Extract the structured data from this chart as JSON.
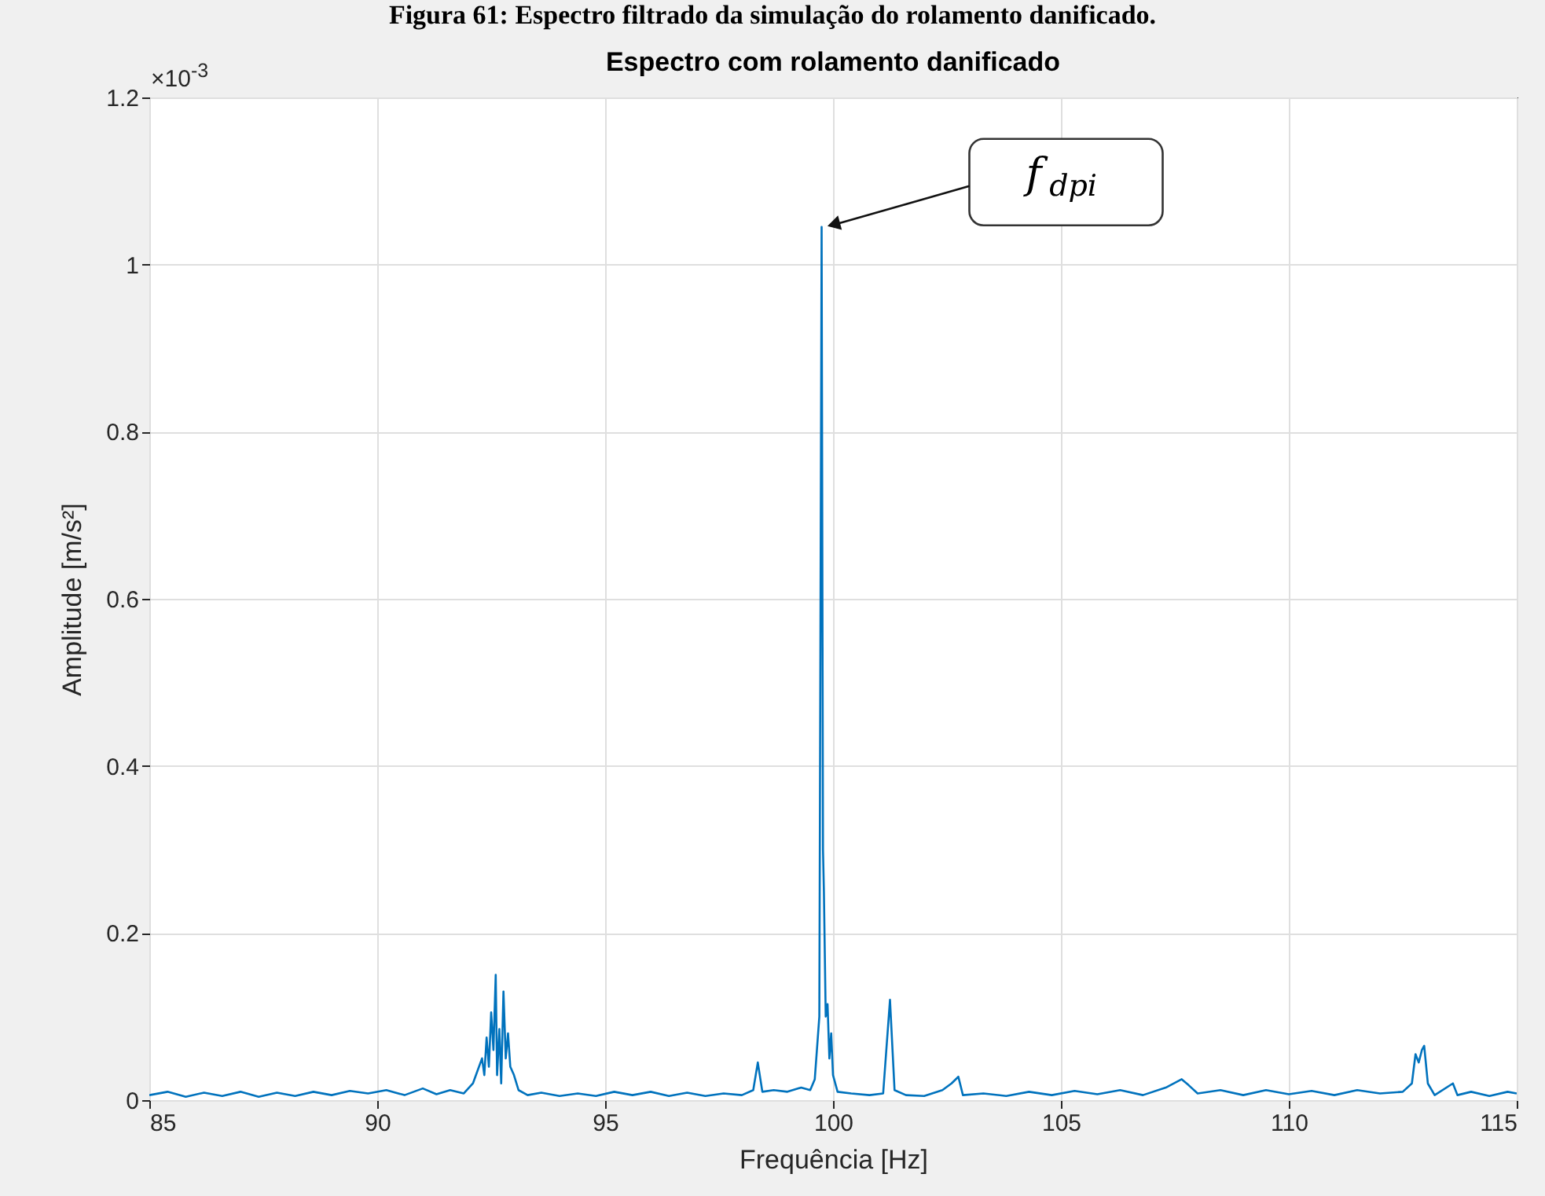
{
  "chart_data": {
    "type": "line",
    "title": "Espectro com rolamento danificado",
    "xlabel": "Frequência [Hz]",
    "ylabel": "Amplitude [m/s²]",
    "annotations": [
      "×10$^{-3}$",
      "Figura 61: Espectro filtrado da simulação do rolamento danificado.",
      "f$_{dpi}$"
    ],
    "xlim": [
      85,
      115
    ],
    "xticks": [
      85,
      90,
      95,
      100,
      105,
      110,
      115
    ],
    "ylim": [
      0,
      1.2
    ],
    "yticks": [
      0,
      0.2,
      0.4,
      0.6,
      0.8,
      1,
      1.2
    ],
    "grid": true,
    "marker": "none",
    "line_style": "solid",
    "series": [
      {
        "color": "#0072bd",
        "x": [
          85,
          85.4,
          85.8,
          86.2,
          86.6,
          87,
          87.4,
          87.8,
          88.2,
          88.6,
          89,
          89.4,
          89.8,
          90.2,
          90.6,
          91,
          91.3,
          91.6,
          91.9,
          92.1,
          92.2,
          92.3,
          92.35,
          92.4,
          92.45,
          92.5,
          92.55,
          92.6,
          92.63,
          92.68,
          92.72,
          92.77,
          92.82,
          92.87,
          92.92,
          93,
          93.1,
          93.3,
          93.6,
          94,
          94.4,
          94.8,
          95.2,
          95.6,
          96,
          96.4,
          96.8,
          97.2,
          97.6,
          98,
          98.25,
          98.35,
          98.45,
          98.7,
          99,
          99.3,
          99.5,
          99.6,
          99.7,
          99.75,
          99.78,
          99.8,
          99.84,
          99.88,
          99.92,
          99.96,
          100,
          100.1,
          100.4,
          100.8,
          101.1,
          101.25,
          101.35,
          101.6,
          102,
          102.4,
          102.6,
          102.75,
          102.85,
          103.3,
          103.8,
          104.3,
          104.8,
          105.3,
          105.8,
          106.3,
          106.8,
          107.3,
          107.65,
          107.8,
          108,
          108.5,
          109,
          109.5,
          110,
          110.5,
          111,
          111.5,
          112,
          112.5,
          112.7,
          112.78,
          112.85,
          112.92,
          112.97,
          113.05,
          113.2,
          113.6,
          113.7,
          114,
          114.4,
          114.8,
          115
        ],
        "values": [
          0.006,
          0.01,
          0.004,
          0.009,
          0.005,
          0.01,
          0.004,
          0.009,
          0.005,
          0.01,
          0.006,
          0.011,
          0.008,
          0.012,
          0.006,
          0.014,
          0.007,
          0.012,
          0.008,
          0.02,
          0.035,
          0.05,
          0.03,
          0.075,
          0.04,
          0.105,
          0.06,
          0.15,
          0.03,
          0.085,
          0.02,
          0.13,
          0.05,
          0.08,
          0.04,
          0.03,
          0.012,
          0.006,
          0.009,
          0.005,
          0.008,
          0.005,
          0.01,
          0.006,
          0.01,
          0.005,
          0.009,
          0.005,
          0.008,
          0.006,
          0.012,
          0.045,
          0.01,
          0.012,
          0.01,
          0.015,
          0.012,
          0.025,
          0.1,
          1.045,
          0.3,
          0.25,
          0.1,
          0.115,
          0.05,
          0.08,
          0.03,
          0.01,
          0.008,
          0.006,
          0.008,
          0.12,
          0.012,
          0.006,
          0.005,
          0.012,
          0.02,
          0.028,
          0.006,
          0.008,
          0.005,
          0.01,
          0.006,
          0.011,
          0.007,
          0.012,
          0.006,
          0.015,
          0.025,
          0.018,
          0.008,
          0.012,
          0.006,
          0.012,
          0.007,
          0.011,
          0.006,
          0.012,
          0.008,
          0.01,
          0.02,
          0.055,
          0.045,
          0.06,
          0.065,
          0.02,
          0.006,
          0.02,
          0.006,
          0.01,
          0.005,
          0.01,
          0.008
        ]
      }
    ]
  }
}
